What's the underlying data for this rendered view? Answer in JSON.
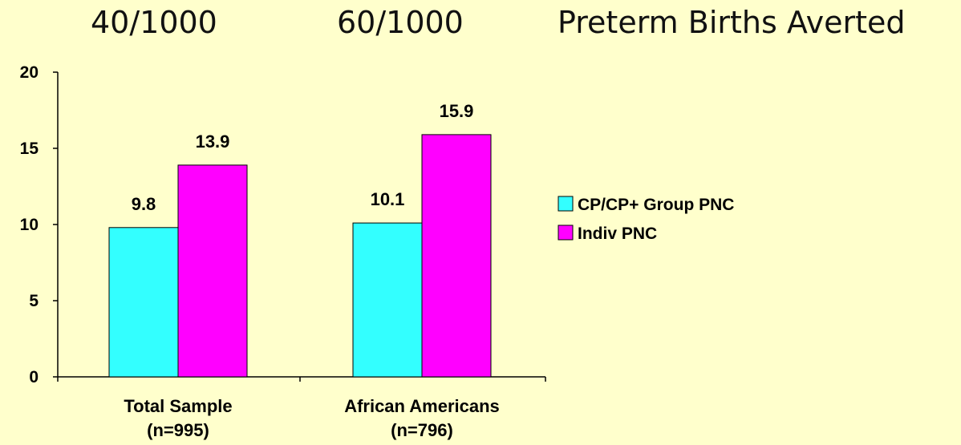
{
  "headers": {
    "rate_total": "40/1000",
    "rate_aa": "60/1000",
    "title": "Preterm Births Averted"
  },
  "chart_data": {
    "type": "bar",
    "categories": [
      "Total Sample\n(n=995)",
      "African Americans\n(n=796)"
    ],
    "series": [
      {
        "name": "CP/CP+ Group PNC",
        "values": [
          9.8,
          10.1
        ],
        "color": "#33FFFF"
      },
      {
        "name": "Indiv PNC",
        "values": [
          13.9,
          15.9
        ],
        "color": "#FF00FF"
      }
    ],
    "ylim": [
      0,
      20
    ],
    "yticks": [
      0,
      5,
      10,
      15,
      20
    ],
    "grid": false,
    "legend": "right"
  }
}
